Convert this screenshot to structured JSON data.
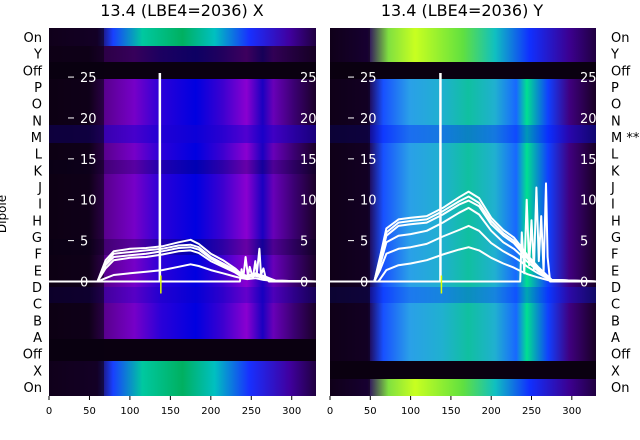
{
  "chart_data": [
    {
      "type": "heatmap",
      "title": "13.4 (LBE4=2036) X",
      "ylabel": "Dipole",
      "xlim": [
        0,
        330
      ],
      "ylim": [
        -14,
        31
      ],
      "x_ticks": [
        0,
        50,
        100,
        150,
        200,
        250,
        300
      ],
      "y_ticks": [
        0,
        5,
        10,
        15,
        20,
        25
      ],
      "row_labels": [
        "On",
        "Y",
        "Off",
        "P",
        "O",
        "N",
        "M",
        "L",
        "K",
        "J",
        "I",
        "H",
        "G",
        "F",
        "E",
        "D",
        "C",
        "B",
        "A",
        "Off",
        "X",
        "On"
      ],
      "spike": {
        "x": 137,
        "y_top": 25.5
      },
      "series": [
        {
          "values": [
            [
              0,
              0
            ],
            [
              60,
              0
            ],
            [
              70,
              2.2
            ],
            [
              80,
              3.4
            ],
            [
              100,
              3.6
            ],
            [
              120,
              3.8
            ],
            [
              140,
              4.0
            ],
            [
              160,
              4.4
            ],
            [
              175,
              4.5
            ],
            [
              185,
              4.2
            ],
            [
              200,
              3.0
            ],
            [
              215,
              2.2
            ],
            [
              230,
              1.4
            ],
            [
              238,
              0.8
            ],
            [
              245,
              0.6
            ],
            [
              255,
              0.9
            ],
            [
              265,
              0.6
            ],
            [
              280,
              0.1
            ],
            [
              330,
              0
            ]
          ]
        },
        {
          "values": [
            [
              0,
              0
            ],
            [
              60,
              0
            ],
            [
              70,
              2.6
            ],
            [
              80,
              3.7
            ],
            [
              100,
              4.0
            ],
            [
              120,
              4.1
            ],
            [
              140,
              4.3
            ],
            [
              160,
              4.8
            ],
            [
              175,
              5.1
            ],
            [
              185,
              4.6
            ],
            [
              200,
              3.4
            ],
            [
              215,
              2.6
            ],
            [
              230,
              1.6
            ],
            [
              238,
              0.9
            ],
            [
              245,
              0.7
            ],
            [
              255,
              1.0
            ],
            [
              265,
              0.7
            ],
            [
              280,
              0.1
            ],
            [
              330,
              0
            ]
          ]
        },
        {
          "values": [
            [
              0,
              0
            ],
            [
              60,
              0
            ],
            [
              70,
              2.0
            ],
            [
              80,
              3.0
            ],
            [
              100,
              3.2
            ],
            [
              120,
              3.4
            ],
            [
              140,
              3.7
            ],
            [
              160,
              4.1
            ],
            [
              175,
              4.2
            ],
            [
              185,
              3.9
            ],
            [
              200,
              2.8
            ],
            [
              215,
              2.0
            ],
            [
              230,
              1.2
            ],
            [
              238,
              0.7
            ],
            [
              245,
              0.5
            ],
            [
              255,
              0.8
            ],
            [
              265,
              0.5
            ],
            [
              280,
              0.1
            ],
            [
              330,
              0
            ]
          ]
        },
        {
          "values": [
            [
              0,
              0
            ],
            [
              60,
              0
            ],
            [
              70,
              1.6
            ],
            [
              80,
              2.6
            ],
            [
              100,
              2.9
            ],
            [
              120,
              3.0
            ],
            [
              140,
              3.3
            ],
            [
              160,
              3.7
            ],
            [
              175,
              3.8
            ],
            [
              185,
              3.5
            ],
            [
              200,
              2.5
            ],
            [
              215,
              1.8
            ],
            [
              230,
              1.1
            ],
            [
              238,
              0.6
            ],
            [
              245,
              0.5
            ],
            [
              255,
              0.7
            ],
            [
              265,
              0.4
            ],
            [
              280,
              0.1
            ],
            [
              330,
              0
            ]
          ]
        },
        {
          "values": [
            [
              0,
              0
            ],
            [
              60,
              0
            ],
            [
              70,
              0.4
            ],
            [
              80,
              0.8
            ],
            [
              100,
              1.0
            ],
            [
              120,
              1.2
            ],
            [
              140,
              1.4
            ],
            [
              160,
              1.8
            ],
            [
              175,
              2.1
            ],
            [
              185,
              1.9
            ],
            [
              200,
              1.4
            ],
            [
              215,
              1.0
            ],
            [
              230,
              0.6
            ],
            [
              238,
              0.4
            ],
            [
              245,
              0.3
            ],
            [
              255,
              0.4
            ],
            [
              265,
              0.2
            ],
            [
              280,
              0.05
            ],
            [
              330,
              0
            ]
          ]
        },
        {
          "values": [
            [
              0,
              0
            ],
            [
              236,
              0
            ],
            [
              238,
              1.5
            ],
            [
              240,
              0.4
            ],
            [
              243,
              3.0
            ],
            [
              246,
              0.6
            ],
            [
              248,
              1.8
            ],
            [
              252,
              0.4
            ],
            [
              255,
              2.5
            ],
            [
              257,
              1.0
            ],
            [
              260,
              4.0
            ],
            [
              262,
              0.8
            ],
            [
              265,
              1.6
            ],
            [
              268,
              0.4
            ],
            [
              272,
              0
            ],
            [
              330,
              0
            ]
          ]
        }
      ]
    },
    {
      "type": "heatmap",
      "title": "13.4 (LBE4=2036) Y",
      "xlim": [
        0,
        330
      ],
      "ylim": [
        -14,
        31
      ],
      "x_ticks": [
        0,
        50,
        100,
        150,
        200,
        250,
        300
      ],
      "y_ticks": [
        0,
        5,
        10,
        15,
        20,
        25
      ],
      "row_labels": [
        "On",
        "Y",
        "Off",
        "P",
        "O",
        "N",
        "M **",
        "L",
        "K",
        "J",
        "I",
        "H",
        "G",
        "F",
        "E",
        "D",
        "C",
        "B",
        "A",
        "Off",
        "X",
        "On"
      ],
      "spike": {
        "x": 137,
        "y_top": 25.5
      },
      "series": [
        {
          "values": [
            [
              0,
              0
            ],
            [
              55,
              0
            ],
            [
              62,
              3.0
            ],
            [
              70,
              6.5
            ],
            [
              85,
              7.6
            ],
            [
              100,
              7.8
            ],
            [
              120,
              8.0
            ],
            [
              140,
              9.0
            ],
            [
              160,
              10.3
            ],
            [
              172,
              11.0
            ],
            [
              185,
              10.2
            ],
            [
              200,
              7.8
            ],
            [
              215,
              6.3
            ],
            [
              228,
              5.4
            ],
            [
              236,
              4.4
            ],
            [
              245,
              3.2
            ],
            [
              258,
              1.8
            ],
            [
              275,
              0.2
            ],
            [
              330,
              0
            ]
          ]
        },
        {
          "values": [
            [
              0,
              0
            ],
            [
              55,
              0
            ],
            [
              62,
              2.6
            ],
            [
              70,
              6.0
            ],
            [
              85,
              7.2
            ],
            [
              100,
              7.4
            ],
            [
              120,
              7.6
            ],
            [
              140,
              8.6
            ],
            [
              160,
              9.8
            ],
            [
              172,
              10.4
            ],
            [
              185,
              9.6
            ],
            [
              200,
              7.4
            ],
            [
              215,
              5.9
            ],
            [
              228,
              5.0
            ],
            [
              236,
              4.1
            ],
            [
              245,
              3.0
            ],
            [
              258,
              1.6
            ],
            [
              275,
              0.2
            ],
            [
              330,
              0
            ]
          ]
        },
        {
          "values": [
            [
              0,
              0
            ],
            [
              55,
              0
            ],
            [
              62,
              2.4
            ],
            [
              70,
              5.6
            ],
            [
              85,
              6.8
            ],
            [
              100,
              7.0
            ],
            [
              120,
              7.2
            ],
            [
              140,
              8.2
            ],
            [
              160,
              9.4
            ],
            [
              172,
              9.9
            ],
            [
              185,
              9.2
            ],
            [
              200,
              7.0
            ],
            [
              215,
              5.6
            ],
            [
              228,
              4.7
            ],
            [
              236,
              3.8
            ],
            [
              245,
              2.8
            ],
            [
              258,
              1.5
            ],
            [
              275,
              0.2
            ],
            [
              330,
              0
            ]
          ]
        },
        {
          "values": [
            [
              0,
              0
            ],
            [
              55,
              0
            ],
            [
              62,
              2.0
            ],
            [
              70,
              4.8
            ],
            [
              85,
              5.6
            ],
            [
              100,
              5.8
            ],
            [
              120,
              6.2
            ],
            [
              140,
              7.2
            ],
            [
              160,
              8.4
            ],
            [
              172,
              9.0
            ],
            [
              185,
              8.2
            ],
            [
              200,
              6.2
            ],
            [
              215,
              4.8
            ],
            [
              228,
              4.0
            ],
            [
              236,
              3.3
            ],
            [
              245,
              2.4
            ],
            [
              258,
              1.3
            ],
            [
              275,
              0.2
            ],
            [
              330,
              0
            ]
          ]
        },
        {
          "values": [
            [
              0,
              0
            ],
            [
              55,
              0
            ],
            [
              62,
              1.4
            ],
            [
              70,
              3.4
            ],
            [
              85,
              4.0
            ],
            [
              100,
              4.2
            ],
            [
              120,
              4.6
            ],
            [
              140,
              5.5
            ],
            [
              160,
              6.3
            ],
            [
              172,
              6.8
            ],
            [
              185,
              6.2
            ],
            [
              200,
              4.7
            ],
            [
              215,
              3.7
            ],
            [
              228,
              3.0
            ],
            [
              236,
              2.5
            ],
            [
              245,
              1.8
            ],
            [
              258,
              1.0
            ],
            [
              275,
              0.1
            ],
            [
              330,
              0
            ]
          ]
        },
        {
          "values": [
            [
              0,
              0
            ],
            [
              60,
              0
            ],
            [
              70,
              1.4
            ],
            [
              85,
              2.0
            ],
            [
              100,
              2.2
            ],
            [
              120,
              2.6
            ],
            [
              140,
              3.3
            ],
            [
              160,
              3.9
            ],
            [
              172,
              4.2
            ],
            [
              185,
              3.8
            ],
            [
              200,
              2.9
            ],
            [
              215,
              2.2
            ],
            [
              228,
              1.7
            ],
            [
              236,
              1.3
            ],
            [
              245,
              0.9
            ],
            [
              258,
              0.5
            ],
            [
              275,
              0.05
            ],
            [
              330,
              0
            ]
          ]
        },
        {
          "values": [
            [
              0,
              0
            ],
            [
              236,
              0
            ],
            [
              238,
              6.0
            ],
            [
              241,
              1.0
            ],
            [
              244,
              10.0
            ],
            [
              247,
              2.0
            ],
            [
              250,
              7.5
            ],
            [
              253,
              1.5
            ],
            [
              256,
              11.5
            ],
            [
              259,
              2.5
            ],
            [
              262,
              8.0
            ],
            [
              265,
              1.2
            ],
            [
              268,
              12.0
            ],
            [
              270,
              3.0
            ],
            [
              273,
              0
            ],
            [
              330,
              0
            ]
          ]
        }
      ]
    }
  ]
}
